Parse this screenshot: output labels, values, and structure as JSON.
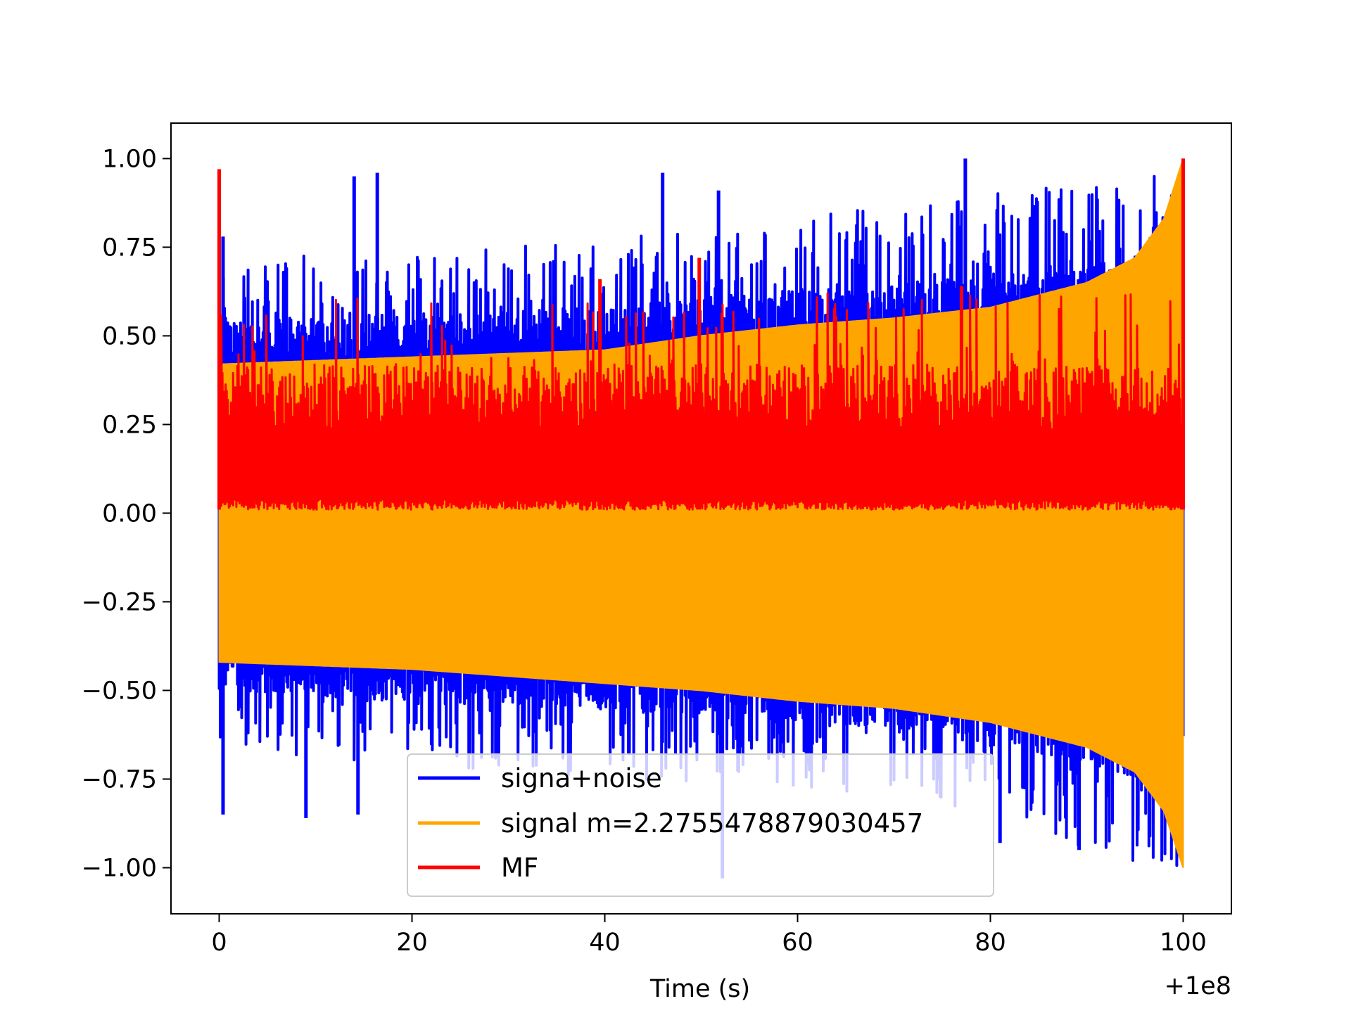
{
  "chart_data": {
    "type": "line",
    "xlabel": "Time (s)",
    "ylabel": "",
    "x_offset_label": "+1e8",
    "xlim": [
      -5,
      105
    ],
    "ylim": [
      -1.13,
      1.1
    ],
    "xticks": [
      0,
      20,
      40,
      60,
      80,
      100
    ],
    "yticks": [
      1.0,
      0.75,
      0.5,
      0.25,
      0.0,
      -0.25,
      -0.5,
      -0.75,
      -1.0
    ],
    "xtick_labels": [
      "0",
      "20",
      "40",
      "60",
      "80",
      "100"
    ],
    "ytick_labels": [
      "1.00",
      "0.75",
      "0.50",
      "0.25",
      "0.00",
      "−0.25",
      "−0.50",
      "−0.75",
      "−1.00"
    ],
    "grid": false,
    "legend_position": "lower center",
    "series": [
      {
        "name": "signa+noise",
        "color": "#0000ff",
        "x_range": [
          0,
          100
        ],
        "envelope_x": [
          0,
          20,
          40,
          60,
          80,
          90,
          100
        ],
        "envelope_max": [
          0.6,
          0.62,
          0.65,
          0.7,
          0.75,
          0.78,
          0.8
        ],
        "envelope_min": [
          -0.55,
          -0.6,
          -0.62,
          -0.65,
          -0.7,
          -0.8,
          -0.85
        ],
        "peaks": [
          {
            "x": 0.4,
            "y": 0.78
          },
          {
            "x": 14,
            "y": 0.95
          },
          {
            "x": 16.4,
            "y": 0.96
          },
          {
            "x": 46,
            "y": 0.96
          },
          {
            "x": 51.8,
            "y": 0.91
          },
          {
            "x": 77.4,
            "y": 1.0
          },
          {
            "x": 9,
            "y": -0.86
          },
          {
            "x": 14.4,
            "y": -0.85
          },
          {
            "x": 52.2,
            "y": -1.03
          },
          {
            "x": 81,
            "y": -0.93
          },
          {
            "x": 89.2,
            "y": -0.95
          },
          {
            "x": 0.4,
            "y": -0.85
          }
        ]
      },
      {
        "name": "signal m=2.2755478879030457",
        "color": "#ffa500",
        "x_range": [
          0,
          100
        ],
        "envelope_x": [
          0,
          20,
          40,
          50,
          60,
          70,
          80,
          90,
          95,
          98,
          100
        ],
        "envelope_max": [
          0.42,
          0.44,
          0.46,
          0.5,
          0.53,
          0.55,
          0.58,
          0.65,
          0.72,
          0.83,
          1.0
        ],
        "envelope_min": [
          -0.42,
          -0.44,
          -0.48,
          -0.5,
          -0.53,
          -0.55,
          -0.59,
          -0.66,
          -0.73,
          -0.84,
          -1.0
        ]
      },
      {
        "name": "MF",
        "color": "#ff0000",
        "x_range": [
          0,
          100
        ],
        "baseline": 0.01,
        "typical_max": 0.42,
        "peaks": [
          {
            "x": 0,
            "y": 0.97
          },
          {
            "x": 100,
            "y": 1.0
          },
          {
            "x": 39.5,
            "y": 0.66
          },
          {
            "x": 49.8,
            "y": 0.72
          },
          {
            "x": 77,
            "y": 0.64
          }
        ]
      }
    ]
  }
}
